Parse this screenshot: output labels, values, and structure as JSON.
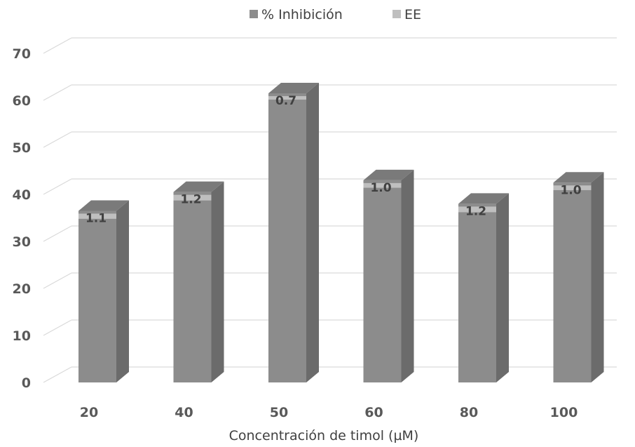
{
  "chart_data": {
    "type": "bar",
    "style": "3d-column",
    "title": "",
    "xlabel": "Concentración de timol (µM)",
    "ylabel": "",
    "categories": [
      "20",
      "40",
      "50",
      "60",
      "80",
      "100"
    ],
    "series": [
      {
        "name": "% Inhibición",
        "values": [
          36.5,
          40.5,
          61.5,
          43.0,
          38.0,
          42.5
        ],
        "color": "#8c8c8c"
      },
      {
        "name": "EE",
        "values": [
          1.1,
          1.2,
          0.7,
          1.0,
          1.2,
          1.0
        ],
        "color": "#bfbfbf"
      }
    ],
    "data_labels": [
      "1.1",
      "1.2",
      "0.7",
      "1.0",
      "1.2",
      "1.0"
    ],
    "yticks": [
      "0",
      "10",
      "20",
      "30",
      "40",
      "50",
      "60",
      "70"
    ],
    "ylim": [
      0,
      70
    ],
    "grid": true,
    "legend_position": "top"
  }
}
